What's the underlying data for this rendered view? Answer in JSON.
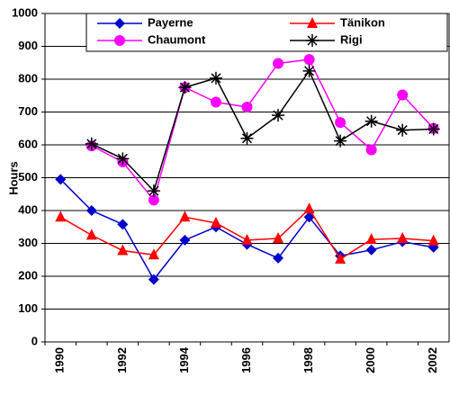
{
  "chart_data": {
    "type": "line",
    "y_label": "Hours",
    "categories": [
      "1990",
      null,
      "1992",
      null,
      "1994",
      null,
      "1996",
      null,
      "1998",
      null,
      "2000",
      null,
      "2002"
    ],
    "series": [
      {
        "name": "Payerne",
        "color": "#0000cc",
        "marker": "diamond",
        "values": [
          495,
          400,
          358,
          190,
          310,
          350,
          297,
          255,
          380,
          262,
          280,
          305,
          288
        ]
      },
      {
        "name": "Tänikon",
        "color": "#ff0000",
        "marker": "triangle",
        "values": [
          380,
          325,
          278,
          265,
          380,
          362,
          310,
          315,
          405,
          252,
          312,
          315,
          308
        ]
      },
      {
        "name": "Chaumont",
        "color": "#ff00ff",
        "marker": "circle",
        "values": [
          null,
          597,
          548,
          432,
          775,
          730,
          715,
          848,
          860,
          668,
          585,
          752,
          650
        ]
      },
      {
        "name": "Rigi",
        "color": "#000000",
        "marker": "star",
        "values": [
          null,
          603,
          558,
          460,
          775,
          803,
          620,
          690,
          825,
          612,
          672,
          645,
          648
        ]
      }
    ],
    "ylim": [
      0,
      1000
    ],
    "yticks": [
      0,
      100,
      200,
      300,
      400,
      500,
      600,
      700,
      800,
      900,
      1000
    ],
    "grid": true
  }
}
